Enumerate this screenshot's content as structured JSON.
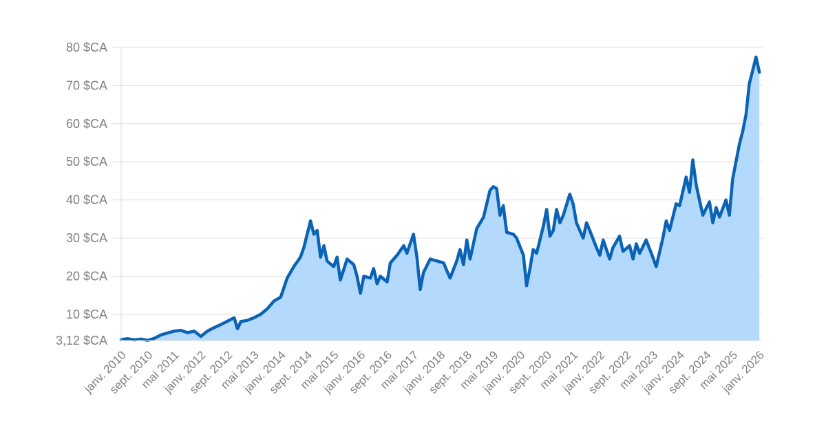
{
  "chart_data": {
    "type": "area",
    "title": "",
    "xlabel": "",
    "ylabel": "",
    "ylim": [
      3.12,
      80
    ],
    "xlim": [
      "2010-01-01",
      "2026-01-31"
    ],
    "grid": true,
    "legend": "none",
    "line_color": "#0b63b6",
    "fill_color": "#b3dafc",
    "y_ticks": [
      {
        "value": 3.12,
        "label": "3,12 $CA"
      },
      {
        "value": 10,
        "label": "10 $CA"
      },
      {
        "value": 20,
        "label": "20 $CA"
      },
      {
        "value": 30,
        "label": "30 $CA"
      },
      {
        "value": 40,
        "label": "40 $CA"
      },
      {
        "value": 50,
        "label": "50 $CA"
      },
      {
        "value": 60,
        "label": "60 $CA"
      },
      {
        "value": 70,
        "label": "70 $CA"
      },
      {
        "value": 80,
        "label": "80 $CA"
      }
    ],
    "x_ticks": [
      {
        "value": "2010-01",
        "label": "janv. 2010"
      },
      {
        "value": "2010-09",
        "label": "sept. 2010"
      },
      {
        "value": "2011-05",
        "label": "mai 2011"
      },
      {
        "value": "2012-01",
        "label": "janv. 2012"
      },
      {
        "value": "2012-09",
        "label": "sept. 2012"
      },
      {
        "value": "2013-05",
        "label": "mai 2013"
      },
      {
        "value": "2014-01",
        "label": "janv. 2014"
      },
      {
        "value": "2014-09",
        "label": "sept. 2014"
      },
      {
        "value": "2015-05",
        "label": "mai 2015"
      },
      {
        "value": "2016-01",
        "label": "janv. 2016"
      },
      {
        "value": "2016-09",
        "label": "sept. 2016"
      },
      {
        "value": "2017-05",
        "label": "mai 2017"
      },
      {
        "value": "2018-01",
        "label": "janv. 2018"
      },
      {
        "value": "2018-09",
        "label": "sept. 2018"
      },
      {
        "value": "2019-05",
        "label": "mai 2019"
      },
      {
        "value": "2020-01",
        "label": "janv. 2020"
      },
      {
        "value": "2020-09",
        "label": "sept. 2020"
      },
      {
        "value": "2021-05",
        "label": "mai 2021"
      },
      {
        "value": "2022-01",
        "label": "janv. 2022"
      },
      {
        "value": "2022-09",
        "label": "sept. 2022"
      },
      {
        "value": "2023-05",
        "label": "mai 2023"
      },
      {
        "value": "2024-01",
        "label": "janv. 2024"
      },
      {
        "value": "2024-09",
        "label": "sept. 2024"
      },
      {
        "value": "2025-05",
        "label": "mai 2025"
      },
      {
        "value": "2026-01",
        "label": "janv. 2026"
      }
    ],
    "series": [
      {
        "points": [
          [
            "2010-01",
            3.4
          ],
          [
            "2010-03",
            3.6
          ],
          [
            "2010-05",
            3.3
          ],
          [
            "2010-07",
            3.5
          ],
          [
            "2010-09",
            3.2
          ],
          [
            "2010-11",
            3.7
          ],
          [
            "2011-01",
            4.6
          ],
          [
            "2011-03",
            5.1
          ],
          [
            "2011-05",
            5.6
          ],
          [
            "2011-07",
            5.8
          ],
          [
            "2011-09",
            5.2
          ],
          [
            "2011-11",
            5.6
          ],
          [
            "2012-01",
            4.2
          ],
          [
            "2012-03",
            5.6
          ],
          [
            "2012-05",
            6.5
          ],
          [
            "2012-07",
            7.3
          ],
          [
            "2012-09",
            8.2
          ],
          [
            "2012-11",
            9.1
          ],
          [
            "2012-12",
            6.2
          ],
          [
            "2013-01",
            8.1
          ],
          [
            "2013-03",
            8.4
          ],
          [
            "2013-05",
            9.1
          ],
          [
            "2013-07",
            10.0
          ],
          [
            "2013-09",
            11.5
          ],
          [
            "2013-11",
            13.5
          ],
          [
            "2014-01",
            14.5
          ],
          [
            "2014-03",
            19.5
          ],
          [
            "2014-05",
            22.5
          ],
          [
            "2014-07",
            25.0
          ],
          [
            "2014-08",
            27.5
          ],
          [
            "2014-10",
            34.5
          ],
          [
            "2014-11",
            31.0
          ],
          [
            "2014-12",
            32.0
          ],
          [
            "2015-01",
            25.0
          ],
          [
            "2015-02",
            28.0
          ],
          [
            "2015-03",
            24.0
          ],
          [
            "2015-05",
            22.5
          ],
          [
            "2015-06",
            25.0
          ],
          [
            "2015-07",
            19.0
          ],
          [
            "2015-09",
            24.5
          ],
          [
            "2015-11",
            23.0
          ],
          [
            "2015-12",
            20.0
          ],
          [
            "2016-01",
            15.5
          ],
          [
            "2016-02",
            20.0
          ],
          [
            "2016-04",
            19.5
          ],
          [
            "2016-05",
            22.0
          ],
          [
            "2016-06",
            18.0
          ],
          [
            "2016-07",
            20.0
          ],
          [
            "2016-09",
            18.5
          ],
          [
            "2016-10",
            23.5
          ],
          [
            "2016-12",
            25.5
          ],
          [
            "2017-02",
            28.0
          ],
          [
            "2017-03",
            26.0
          ],
          [
            "2017-05",
            31.0
          ],
          [
            "2017-06",
            25.0
          ],
          [
            "2017-07",
            16.5
          ],
          [
            "2017-08",
            21.0
          ],
          [
            "2017-10",
            24.5
          ],
          [
            "2017-12",
            24.0
          ],
          [
            "2018-02",
            23.5
          ],
          [
            "2018-03",
            21.5
          ],
          [
            "2018-04",
            19.5
          ],
          [
            "2018-06",
            24.0
          ],
          [
            "2018-07",
            27.0
          ],
          [
            "2018-08",
            23.0
          ],
          [
            "2018-09",
            29.5
          ],
          [
            "2018-10",
            24.5
          ],
          [
            "2018-12",
            32.5
          ],
          [
            "2019-02",
            35.5
          ],
          [
            "2019-04",
            42.5
          ],
          [
            "2019-05",
            43.5
          ],
          [
            "2019-06",
            43.0
          ],
          [
            "2019-07",
            36.0
          ],
          [
            "2019-08",
            38.5
          ],
          [
            "2019-09",
            31.5
          ],
          [
            "2019-11",
            31.0
          ],
          [
            "2019-12",
            30.0
          ],
          [
            "2020-02",
            25.5
          ],
          [
            "2020-03",
            17.5
          ],
          [
            "2020-04",
            22.0
          ],
          [
            "2020-05",
            27.0
          ],
          [
            "2020-06",
            26.0
          ],
          [
            "2020-08",
            33.0
          ],
          [
            "2020-09",
            37.5
          ],
          [
            "2020-10",
            30.5
          ],
          [
            "2020-11",
            32.0
          ],
          [
            "2020-12",
            37.5
          ],
          [
            "2021-01",
            34.0
          ],
          [
            "2021-02",
            36.0
          ],
          [
            "2021-04",
            41.5
          ],
          [
            "2021-05",
            39.0
          ],
          [
            "2021-06",
            34.0
          ],
          [
            "2021-08",
            30.0
          ],
          [
            "2021-09",
            34.0
          ],
          [
            "2021-10",
            32.0
          ],
          [
            "2021-12",
            27.5
          ],
          [
            "2022-01",
            25.5
          ],
          [
            "2022-02",
            29.5
          ],
          [
            "2022-04",
            24.5
          ],
          [
            "2022-05",
            27.5
          ],
          [
            "2022-07",
            30.5
          ],
          [
            "2022-08",
            26.5
          ],
          [
            "2022-10",
            28.0
          ],
          [
            "2022-11",
            24.5
          ],
          [
            "2022-12",
            28.5
          ],
          [
            "2023-01",
            26.0
          ],
          [
            "2023-03",
            29.5
          ],
          [
            "2023-05",
            25.0
          ],
          [
            "2023-06",
            22.5
          ],
          [
            "2023-08",
            30.0
          ],
          [
            "2023-09",
            34.5
          ],
          [
            "2023-10",
            32.0
          ],
          [
            "2023-12",
            39.0
          ],
          [
            "2024-01",
            38.5
          ],
          [
            "2024-03",
            46.0
          ],
          [
            "2024-04",
            42.0
          ],
          [
            "2024-05",
            50.5
          ],
          [
            "2024-06",
            44.0
          ],
          [
            "2024-07",
            40.0
          ],
          [
            "2024-08",
            36.0
          ],
          [
            "2024-10",
            39.5
          ],
          [
            "2024-11",
            34.0
          ],
          [
            "2024-12",
            38.0
          ],
          [
            "2025-01",
            35.5
          ],
          [
            "2025-03",
            40.0
          ],
          [
            "2025-04",
            36.0
          ],
          [
            "2025-05",
            45.5
          ],
          [
            "2025-07",
            54.5
          ],
          [
            "2025-08",
            58.0
          ],
          [
            "2025-09",
            62.5
          ],
          [
            "2025-10",
            70.5
          ],
          [
            "2025-11",
            74.0
          ],
          [
            "2025-12",
            77.5
          ],
          [
            "2026-01",
            73.5
          ]
        ]
      }
    ]
  }
}
